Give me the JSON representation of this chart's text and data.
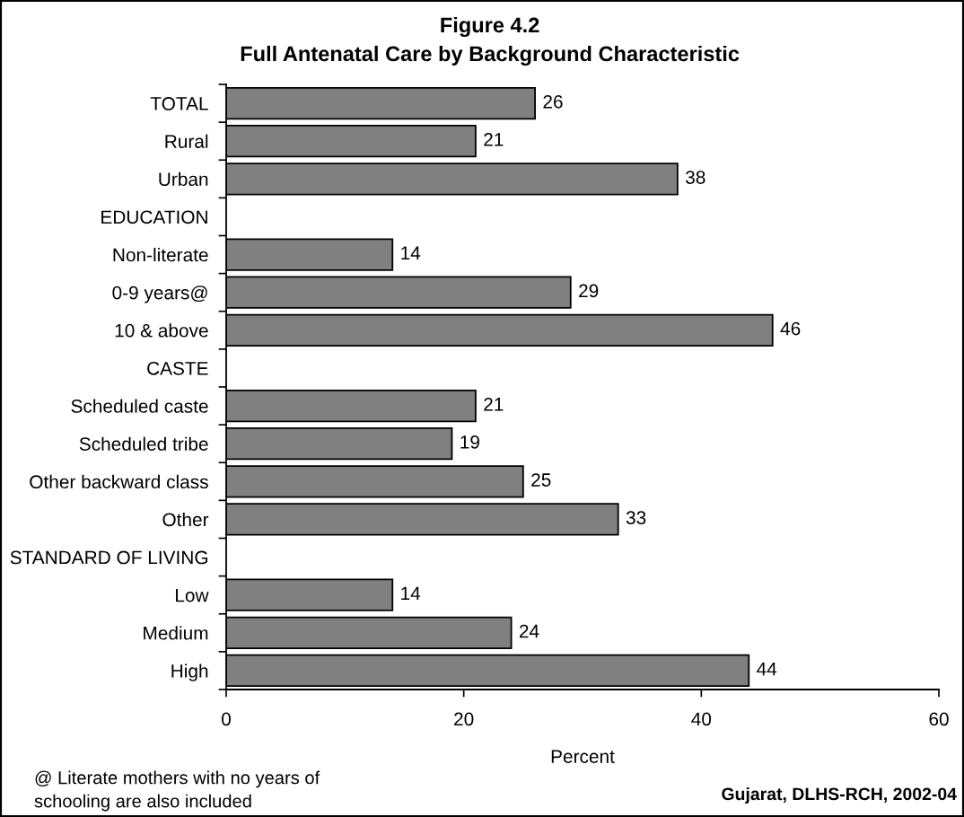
{
  "chart_data": {
    "type": "bar",
    "orientation": "horizontal",
    "title": "Figure 4.2",
    "subtitle": "Full Antenatal Care by Background Characteristic",
    "xlabel": "Percent",
    "categories": [
      "TOTAL",
      "Rural",
      "Urban",
      "EDUCATION",
      "Non-literate",
      "0-9 years@",
      "10 & above",
      "CASTE",
      "Scheduled caste",
      "Scheduled tribe",
      "Other backward class",
      "Other",
      "STANDARD OF LIVING",
      "Low",
      "Medium",
      "High"
    ],
    "series": [
      {
        "color": "#808080",
        "values": [
          26,
          21,
          38,
          null,
          14,
          29,
          46,
          null,
          21,
          19,
          25,
          33,
          null,
          14,
          24,
          44
        ]
      }
    ],
    "xlim": [
      0,
      60
    ],
    "xticks": [
      0,
      20,
      40,
      60
    ],
    "data_labels": true,
    "annotations": [
      "@ Literate mothers with no years of\nschooling are also included",
      "Gujarat, DLHS-RCH, 2002-04"
    ]
  }
}
